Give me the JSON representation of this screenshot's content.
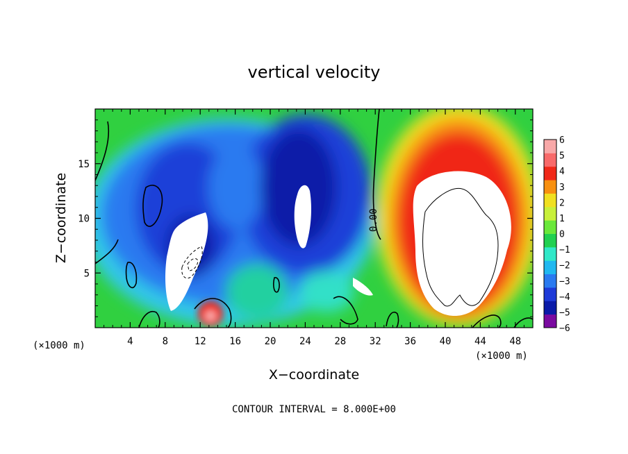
{
  "chart_data": {
    "type": "heatmap",
    "title": "vertical velocity",
    "xlabel": "X−coordinate",
    "ylabel": "Z−coordinate",
    "x_unit_label": "(×1000 m)",
    "xlim": [
      0,
      50
    ],
    "ylim": [
      0,
      20
    ],
    "x_ticks": [
      4,
      8,
      12,
      16,
      20,
      24,
      28,
      32,
      36,
      40,
      44,
      48
    ],
    "y_ticks": [
      5,
      10,
      15
    ],
    "colorbar": {
      "levels": [
        -6,
        -5,
        -4,
        -3,
        -2,
        -1,
        0,
        1,
        2,
        3,
        4,
        5,
        6
      ],
      "labels": [
        "6",
        "5",
        "4",
        "3",
        "2",
        "1",
        "0",
        "−1",
        "−2",
        "−3",
        "−4",
        "−5",
        "−6"
      ],
      "colors": [
        "#7a0aa0",
        "#0a1aa8",
        "#1e3ad8",
        "#2a7af0",
        "#20b8f0",
        "#30e8c8",
        "#20d050",
        "#6ae83a",
        "#c8f03a",
        "#f0e020",
        "#f89010",
        "#f02818",
        "#f86a6a",
        "#f8a8a8"
      ]
    },
    "contour_label": "0.00",
    "contour_interval_text": "CONTOUR INTERVAL = 8.000E+00",
    "features": [
      {
        "kind": "updraft",
        "x_range": [
          34,
          49
        ],
        "z_range": [
          0,
          18
        ],
        "peak_over_range": true
      },
      {
        "kind": "downdraft",
        "x_range": [
          7,
          31
        ],
        "z_range": [
          0,
          17
        ],
        "min_below_range": true
      },
      {
        "kind": "updraft",
        "x_center": 13,
        "z_center": 1.5,
        "value": 5
      }
    ]
  }
}
